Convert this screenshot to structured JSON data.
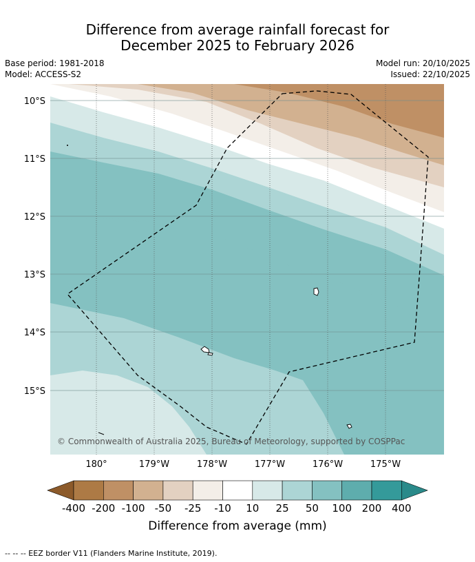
{
  "title": {
    "line1": "Difference from average rainfall forecast for",
    "line2": "December 2025 to February 2026"
  },
  "meta": {
    "base_period": "Base period: 1981-2018",
    "model": "Model: ACCESS-S2",
    "model_run": "Model run: 20/10/2025",
    "issued": "Issued: 22/10/2025"
  },
  "map": {
    "lat_labels": [
      "10°S",
      "11°S",
      "12°S",
      "13°S",
      "14°S",
      "15°S"
    ],
    "lon_labels": [
      "180°",
      "179°W",
      "178°W",
      "177°W",
      "176°W",
      "175°W"
    ],
    "copyright": "© Commonwealth of Australia 2025, Bureau of Meteorology, supported by COSPPac"
  },
  "colorbar": {
    "ticks": [
      "-400",
      "-200",
      "-100",
      "-50",
      "-25",
      "-10",
      "10",
      "25",
      "50",
      "100",
      "200",
      "400"
    ],
    "colors": {
      "below": "#8c5a2a",
      "bins": [
        "#ad7a45",
        "#bf9065",
        "#d2b190",
        "#e3d1c1",
        "#f3eee8",
        "#ffffff",
        "#d7e9e8",
        "#acd5d5",
        "#84c1c1",
        "#5eadad",
        "#349a9a"
      ],
      "above": "#2a8a8a"
    },
    "label": "Difference from average (mm)"
  },
  "footnote": "--  --  -- EEZ border V11 (Flanders Marine Institute, 2019)."
}
